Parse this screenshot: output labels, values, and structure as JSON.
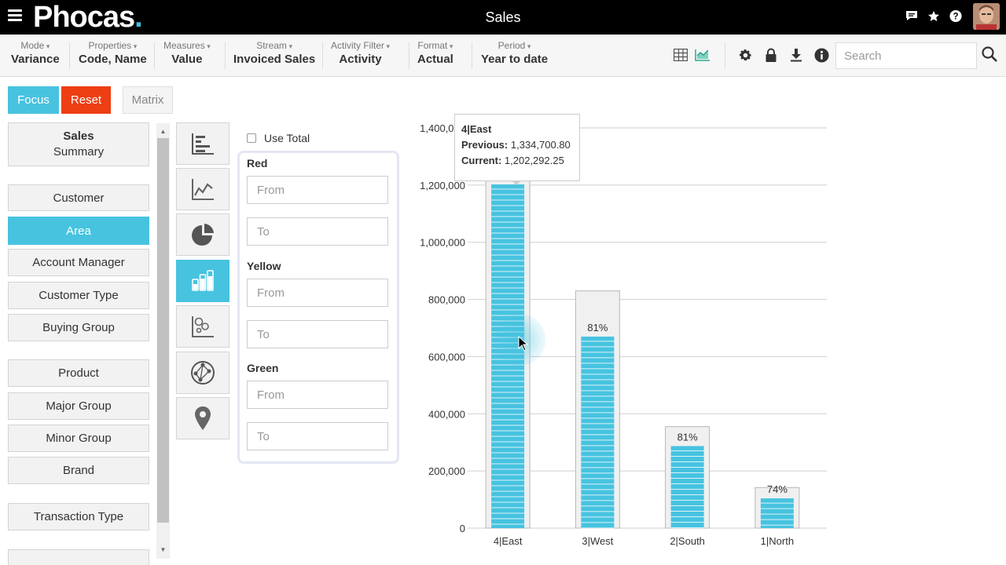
{
  "header": {
    "logo_text": "Phocas",
    "logo_dot": ".",
    "title": "Sales",
    "icons": [
      "menu-icon",
      "chat-icon",
      "star-icon",
      "help-icon",
      "avatar"
    ]
  },
  "toolbar": {
    "items": [
      {
        "label": "Mode",
        "value": "Variance"
      },
      {
        "label": "Properties",
        "value": "Code, Name"
      },
      {
        "label": "Measures",
        "value": "Value"
      },
      {
        "label": "Stream",
        "value": "Invoiced Sales"
      },
      {
        "label": "Activity Filter",
        "value": "Activity"
      },
      {
        "label": "Format",
        "value": "Actual"
      },
      {
        "label": "Period",
        "value": "Year to date"
      }
    ],
    "view_icons": [
      "grid-icon",
      "chart-view-icon"
    ],
    "tool_icons": [
      "gear-icon",
      "lock-icon",
      "download-icon",
      "info-icon"
    ],
    "search_placeholder": "Search"
  },
  "actions": {
    "focus": "Focus",
    "reset": "Reset",
    "matrix": "Matrix"
  },
  "dimensions": {
    "summary_title": "Sales",
    "summary_sub": "Summary",
    "items": [
      "Customer",
      "Area",
      "Account Manager",
      "Customer Type",
      "Buying Group",
      "Product",
      "Major Group",
      "Minor Group",
      "Brand",
      "Transaction Type"
    ],
    "active": "Area"
  },
  "chart_types": [
    "bar-horizontal-icon",
    "line-chart-icon",
    "pie-chart-icon",
    "bar-chart-icon",
    "scatter-icon",
    "network-icon",
    "map-pin-icon"
  ],
  "thresholds": {
    "use_total": "Use Total",
    "red": "Red",
    "yellow": "Yellow",
    "green": "Green",
    "from_placeholder": "From",
    "to_placeholder": "To"
  },
  "tooltip": {
    "title": "4|East",
    "previous_label": "Previous:",
    "previous_value": "1,334,700.80",
    "current_label": "Current:",
    "current_value": "1,202,292.25"
  },
  "chart_data": {
    "type": "bar",
    "categories": [
      "4|East",
      "3|West",
      "2|South",
      "1|North"
    ],
    "series": [
      {
        "name": "Previous",
        "values": [
          1334700.8,
          830000,
          355000,
          142000
        ]
      },
      {
        "name": "Current",
        "values": [
          1202292.25,
          670000,
          287000,
          104000
        ]
      }
    ],
    "data_labels": [
      "",
      "81%",
      "81%",
      "74%"
    ],
    "ylim": [
      0,
      1400000
    ],
    "yticks": [
      0,
      200000,
      400000,
      600000,
      800000,
      1000000,
      1200000,
      1400000
    ],
    "ytick_labels": [
      "0",
      "200,000",
      "400,000",
      "600,000",
      "800,000",
      "1,000,000",
      "1,200,000",
      "1,400,000"
    ],
    "grid": true,
    "colors": {
      "current": "#47c3e0",
      "previous": "#f0f0f0",
      "previous_border": "#b8b8b8"
    }
  }
}
